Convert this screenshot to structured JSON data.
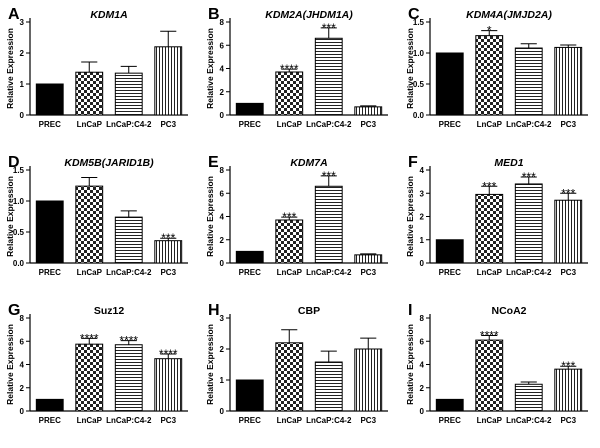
{
  "patterns": {
    "PREC": "solid",
    "LnCaP": "checker",
    "LnCaP:C4-2": "horizontal-lines",
    "PC3": "vertical-lines"
  },
  "chart_data": [
    {
      "type": "bar",
      "panel_letter": "A",
      "title": "KDM1A",
      "title_italic": true,
      "ylabel": "Relative Expression",
      "categories": [
        "PREC",
        "LnCaP",
        "LnCaP:C4-2",
        "PC3"
      ],
      "values": [
        1.0,
        1.38,
        1.35,
        2.2
      ],
      "errors": [
        0,
        0.33,
        0.22,
        0.5
      ],
      "annotations": [
        "",
        "",
        "",
        ""
      ],
      "ylim": [
        0,
        3
      ],
      "yticks": [
        0,
        1,
        2,
        3
      ],
      "ytick_labels": [
        "0",
        "1",
        "2",
        "3"
      ]
    },
    {
      "type": "bar",
      "panel_letter": "B",
      "title": "KDM2A(JHDM1A)",
      "title_italic": true,
      "ylabel": "Relative Expression",
      "categories": [
        "PREC",
        "LnCaP",
        "LnCaP:C4-2",
        "PC3"
      ],
      "values": [
        1.0,
        3.7,
        6.6,
        0.7
      ],
      "errors": [
        0,
        0.25,
        0.9,
        0.08
      ],
      "annotations": [
        "",
        "****",
        "***",
        ""
      ],
      "ylim": [
        0,
        8
      ],
      "yticks": [
        0,
        2,
        4,
        6,
        8
      ],
      "ytick_labels": [
        "0",
        "2",
        "4",
        "6",
        "8"
      ]
    },
    {
      "type": "bar",
      "panel_letter": "C",
      "title": "KDM4A(JMJD2A)",
      "title_italic": true,
      "ylabel": "Relative Expression",
      "categories": [
        "PREC",
        "LnCaP",
        "LnCaP:C4-2",
        "PC3"
      ],
      "values": [
        1.0,
        1.28,
        1.08,
        1.09
      ],
      "errors": [
        0,
        0.08,
        0.07,
        0.04
      ],
      "annotations": [
        "",
        "*",
        "",
        ""
      ],
      "ylim": [
        0,
        1.5
      ],
      "yticks": [
        0,
        0.5,
        1.0,
        1.5
      ],
      "ytick_labels": [
        "0.0",
        "0.5",
        "1.0",
        "1.5"
      ]
    },
    {
      "type": "bar",
      "panel_letter": "D",
      "title": "KDM5B(JARID1B)",
      "title_italic": true,
      "ylabel": "Relative Expression",
      "categories": [
        "PREC",
        "LnCaP",
        "LnCaP:C4-2",
        "PC3"
      ],
      "values": [
        1.0,
        1.24,
        0.74,
        0.36
      ],
      "errors": [
        0,
        0.14,
        0.1,
        0.04
      ],
      "annotations": [
        "",
        "",
        "",
        "***"
      ],
      "ylim": [
        0,
        1.5
      ],
      "yticks": [
        0,
        0.5,
        1.0,
        1.5
      ],
      "ytick_labels": [
        "0.0",
        "0.5",
        "1.0",
        "1.5"
      ]
    },
    {
      "type": "bar",
      "panel_letter": "E",
      "title": "KDM7A",
      "title_italic": true,
      "ylabel": "Relative Expression",
      "categories": [
        "PREC",
        "LnCaP",
        "LnCaP:C4-2",
        "PC3"
      ],
      "values": [
        1.0,
        3.7,
        6.6,
        0.7
      ],
      "errors": [
        0,
        0.25,
        0.9,
        0.08
      ],
      "annotations": [
        "",
        "***",
        "***",
        ""
      ],
      "ylim": [
        0,
        8
      ],
      "yticks": [
        0,
        2,
        4,
        6,
        8
      ],
      "ytick_labels": [
        "0",
        "2",
        "4",
        "6",
        "8"
      ]
    },
    {
      "type": "bar",
      "panel_letter": "F",
      "title": "MED1",
      "title_italic": true,
      "ylabel": "Relative Expression",
      "categories": [
        "PREC",
        "LnCaP",
        "LnCaP:C4-2",
        "PC3"
      ],
      "values": [
        1.0,
        2.95,
        3.4,
        2.7
      ],
      "errors": [
        0,
        0.35,
        0.3,
        0.3
      ],
      "annotations": [
        "",
        "***",
        "***",
        "***"
      ],
      "ylim": [
        0,
        4
      ],
      "yticks": [
        0,
        1,
        2,
        3,
        4
      ],
      "ytick_labels": [
        "0",
        "1",
        "2",
        "3",
        "4"
      ]
    },
    {
      "type": "bar",
      "panel_letter": "G",
      "title": "Suz12",
      "title_italic": false,
      "ylabel": "Relative Expression",
      "categories": [
        "PREC",
        "LnCaP",
        "LnCaP:C4-2",
        "PC3"
      ],
      "values": [
        1.0,
        5.75,
        5.7,
        4.5
      ],
      "errors": [
        0,
        0.5,
        0.35,
        0.4
      ],
      "annotations": [
        "",
        "****",
        "****",
        "****"
      ],
      "ylim": [
        0,
        8
      ],
      "yticks": [
        0,
        2,
        4,
        6,
        8
      ],
      "ytick_labels": [
        "0",
        "2",
        "4",
        "6",
        "8"
      ]
    },
    {
      "type": "bar",
      "panel_letter": "H",
      "title": "CBP",
      "title_italic": false,
      "ylabel": "Relative Expression",
      "categories": [
        "PREC",
        "LnCaP",
        "LnCaP:C4-2",
        "PC3"
      ],
      "values": [
        1.0,
        2.2,
        1.58,
        2.0
      ],
      "errors": [
        0,
        0.42,
        0.35,
        0.35
      ],
      "annotations": [
        "",
        "",
        "",
        ""
      ],
      "ylim": [
        0,
        3
      ],
      "yticks": [
        0,
        1,
        2,
        3
      ],
      "ytick_labels": [
        "0",
        "1",
        "2",
        "3"
      ]
    },
    {
      "type": "bar",
      "panel_letter": "I",
      "title": "NCoA2",
      "title_italic": false,
      "ylabel": "Relative Expression",
      "categories": [
        "PREC",
        "LnCaP",
        "LnCaP:C4-2",
        "PC3"
      ],
      "values": [
        1.0,
        6.1,
        2.3,
        3.6
      ],
      "errors": [
        0,
        0.4,
        0.2,
        0.25
      ],
      "annotations": [
        "",
        "****",
        "",
        "***"
      ],
      "ylim": [
        0,
        8
      ],
      "yticks": [
        0,
        2,
        4,
        6,
        8
      ],
      "ytick_labels": [
        "0",
        "2",
        "4",
        "6",
        "8"
      ]
    }
  ]
}
